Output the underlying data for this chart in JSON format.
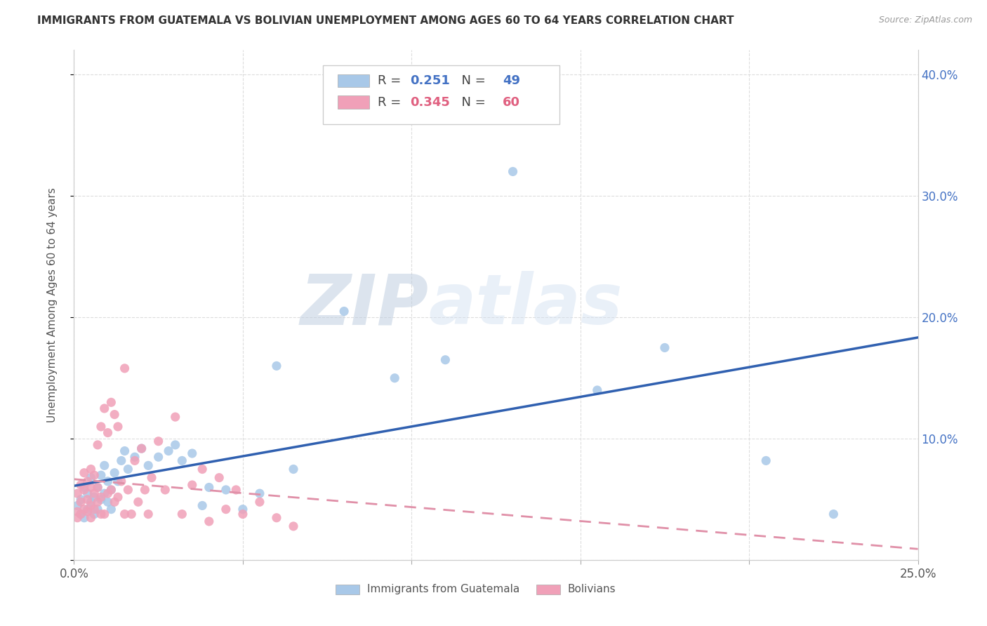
{
  "title": "IMMIGRANTS FROM GUATEMALA VS BOLIVIAN UNEMPLOYMENT AMONG AGES 60 TO 64 YEARS CORRELATION CHART",
  "source": "Source: ZipAtlas.com",
  "ylabel": "Unemployment Among Ages 60 to 64 years",
  "xlim": [
    0.0,
    0.25
  ],
  "ylim": [
    0.0,
    0.42
  ],
  "blue_R": 0.251,
  "blue_N": 49,
  "pink_R": 0.345,
  "pink_N": 60,
  "blue_color": "#a8c8e8",
  "pink_color": "#f0a0b8",
  "blue_line_color": "#3060b0",
  "pink_line_color": "#e090a8",
  "watermark_zip": "ZIP",
  "watermark_atlas": "atlas",
  "legend_label_blue": "Immigrants from Guatemala",
  "legend_label_pink": "Bolivians",
  "blue_x": [
    0.001,
    0.002,
    0.002,
    0.003,
    0.003,
    0.004,
    0.004,
    0.005,
    0.005,
    0.006,
    0.006,
    0.007,
    0.007,
    0.008,
    0.008,
    0.009,
    0.009,
    0.01,
    0.01,
    0.011,
    0.011,
    0.012,
    0.013,
    0.014,
    0.015,
    0.016,
    0.018,
    0.02,
    0.022,
    0.025,
    0.028,
    0.03,
    0.032,
    0.035,
    0.038,
    0.04,
    0.045,
    0.05,
    0.055,
    0.06,
    0.065,
    0.08,
    0.095,
    0.11,
    0.13,
    0.155,
    0.175,
    0.205,
    0.225
  ],
  "blue_y": [
    0.045,
    0.05,
    0.038,
    0.06,
    0.035,
    0.055,
    0.042,
    0.048,
    0.068,
    0.052,
    0.038,
    0.06,
    0.042,
    0.07,
    0.05,
    0.078,
    0.055,
    0.065,
    0.048,
    0.058,
    0.042,
    0.072,
    0.065,
    0.082,
    0.09,
    0.075,
    0.085,
    0.092,
    0.078,
    0.085,
    0.09,
    0.095,
    0.082,
    0.088,
    0.045,
    0.06,
    0.058,
    0.042,
    0.055,
    0.16,
    0.075,
    0.205,
    0.15,
    0.165,
    0.32,
    0.14,
    0.175,
    0.082,
    0.038
  ],
  "pink_x": [
    0.001,
    0.001,
    0.001,
    0.002,
    0.002,
    0.002,
    0.003,
    0.003,
    0.003,
    0.004,
    0.004,
    0.004,
    0.005,
    0.005,
    0.005,
    0.005,
    0.006,
    0.006,
    0.006,
    0.007,
    0.007,
    0.007,
    0.008,
    0.008,
    0.008,
    0.009,
    0.009,
    0.01,
    0.01,
    0.011,
    0.011,
    0.012,
    0.012,
    0.013,
    0.013,
    0.014,
    0.015,
    0.015,
    0.016,
    0.017,
    0.018,
    0.019,
    0.02,
    0.021,
    0.022,
    0.023,
    0.025,
    0.027,
    0.03,
    0.032,
    0.035,
    0.038,
    0.04,
    0.043,
    0.045,
    0.048,
    0.05,
    0.055,
    0.06,
    0.065
  ],
  "pink_y": [
    0.04,
    0.055,
    0.035,
    0.048,
    0.062,
    0.038,
    0.058,
    0.042,
    0.072,
    0.05,
    0.065,
    0.04,
    0.045,
    0.06,
    0.075,
    0.035,
    0.055,
    0.07,
    0.042,
    0.048,
    0.095,
    0.06,
    0.052,
    0.11,
    0.038,
    0.038,
    0.125,
    0.055,
    0.105,
    0.13,
    0.058,
    0.12,
    0.048,
    0.11,
    0.052,
    0.065,
    0.038,
    0.158,
    0.058,
    0.038,
    0.082,
    0.048,
    0.092,
    0.058,
    0.038,
    0.068,
    0.098,
    0.058,
    0.118,
    0.038,
    0.062,
    0.075,
    0.032,
    0.068,
    0.042,
    0.058,
    0.038,
    0.048,
    0.035,
    0.028
  ]
}
